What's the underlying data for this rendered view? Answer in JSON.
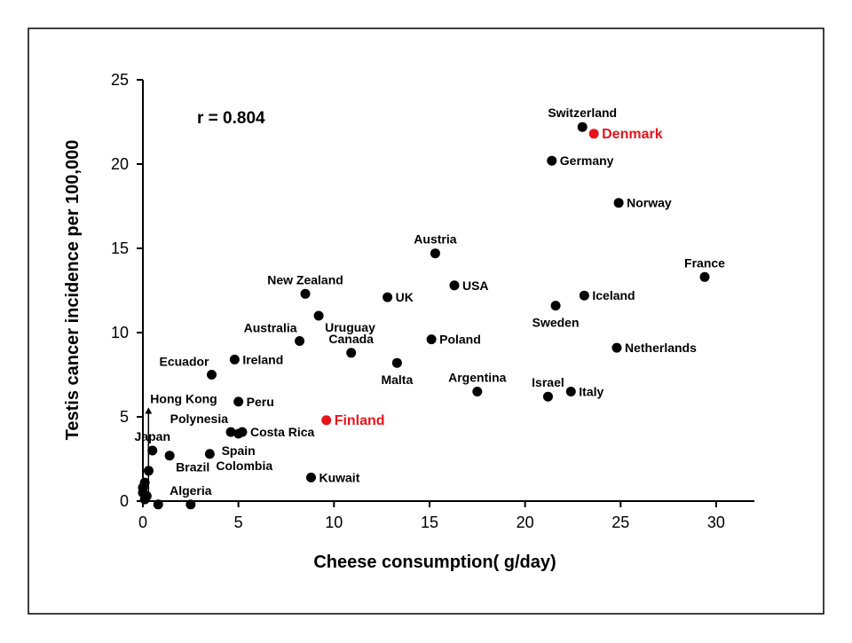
{
  "chart_data": {
    "type": "scatter",
    "title": "",
    "xlabel": "Cheese consumption( g/day)",
    "ylabel": "Testis cancer incidence per 100,000",
    "annotation": "r = 0.804",
    "xlim": [
      0,
      32
    ],
    "ylim": [
      0,
      25
    ],
    "x_ticks": [
      0,
      5,
      10,
      15,
      20,
      25,
      30
    ],
    "y_ticks": [
      0,
      5,
      10,
      15,
      20,
      25
    ],
    "grid": false,
    "legend": "none",
    "colors": {
      "default": "#000000",
      "highlight": "#e8141c"
    },
    "points": [
      {
        "name": "Switzerland",
        "x": 23.0,
        "y": 22.2,
        "label_pos": "above"
      },
      {
        "name": "Denmark",
        "x": 23.6,
        "y": 21.8,
        "label_pos": "right",
        "highlight": true
      },
      {
        "name": "Germany",
        "x": 21.4,
        "y": 20.2,
        "label_pos": "right"
      },
      {
        "name": "Norway",
        "x": 24.9,
        "y": 17.7,
        "label_pos": "right"
      },
      {
        "name": "Austria",
        "x": 15.3,
        "y": 14.7,
        "label_pos": "above"
      },
      {
        "name": "France",
        "x": 29.4,
        "y": 13.3,
        "label_pos": "above"
      },
      {
        "name": "USA",
        "x": 16.3,
        "y": 12.8,
        "label_pos": "right"
      },
      {
        "name": "New Zealand",
        "x": 8.5,
        "y": 12.3,
        "label_pos": "above"
      },
      {
        "name": "UK",
        "x": 12.8,
        "y": 12.1,
        "label_pos": "right"
      },
      {
        "name": "Iceland",
        "x": 23.1,
        "y": 12.2,
        "label_pos": "right"
      },
      {
        "name": "Sweden",
        "x": 21.6,
        "y": 11.6,
        "label_pos": "below"
      },
      {
        "name": "Uruguay",
        "x": 9.2,
        "y": 11.0,
        "label_pos": "right-below"
      },
      {
        "name": "Australia",
        "x": 8.2,
        "y": 9.5,
        "label_pos": "above-left"
      },
      {
        "name": "Poland",
        "x": 15.1,
        "y": 9.6,
        "label_pos": "right"
      },
      {
        "name": "Canada",
        "x": 10.9,
        "y": 8.8,
        "label_pos": "above"
      },
      {
        "name": "Netherlands",
        "x": 24.8,
        "y": 9.1,
        "label_pos": "right"
      },
      {
        "name": "Ireland",
        "x": 4.8,
        "y": 8.4,
        "label_pos": "right"
      },
      {
        "name": "Malta",
        "x": 13.3,
        "y": 8.2,
        "label_pos": "below"
      },
      {
        "name": "Ecuador",
        "x": 3.6,
        "y": 7.5,
        "label_pos": "above-left"
      },
      {
        "name": "Argentina",
        "x": 17.5,
        "y": 6.5,
        "label_pos": "above"
      },
      {
        "name": "Israel",
        "x": 21.2,
        "y": 6.2,
        "label_pos": "above"
      },
      {
        "name": "Italy",
        "x": 22.4,
        "y": 6.5,
        "label_pos": "right"
      },
      {
        "name": "Peru",
        "x": 5.0,
        "y": 5.9,
        "label_pos": "right"
      },
      {
        "name": "Finland",
        "x": 9.6,
        "y": 4.8,
        "label_pos": "right",
        "highlight": true
      },
      {
        "name": "Polynesia",
        "x": 4.6,
        "y": 4.1,
        "label_pos": "above-left"
      },
      {
        "name": "Costa Rica",
        "x": 5.2,
        "y": 4.1,
        "label_pos": "right"
      },
      {
        "name": "Spain",
        "x": 5.0,
        "y": 4.0,
        "label_pos": "below"
      },
      {
        "name": "Japan",
        "x": 0.5,
        "y": 3.0,
        "label_pos": "above"
      },
      {
        "name": "Brazil",
        "x": 1.4,
        "y": 2.7,
        "label_pos": "right-below"
      },
      {
        "name": "Colombia",
        "x": 3.5,
        "y": 2.8,
        "label_pos": "right-below"
      },
      {
        "name": "Kuwait",
        "x": 8.8,
        "y": 1.4,
        "label_pos": "right"
      },
      {
        "name": "Algeria",
        "x": 2.5,
        "y": -0.2,
        "label_pos": "above"
      },
      {
        "name": "Hong Kong",
        "x": 0.2,
        "y": 5.5,
        "label_pos": "above",
        "marker": "arrow"
      },
      {
        "name": "",
        "x": 0.3,
        "y": 1.8
      },
      {
        "name": "",
        "x": 0.1,
        "y": 1.1
      },
      {
        "name": "",
        "x": 0.0,
        "y": 0.8
      },
      {
        "name": "",
        "x": 0.0,
        "y": 0.5
      },
      {
        "name": "",
        "x": 0.2,
        "y": 0.3
      },
      {
        "name": "",
        "x": 0.1,
        "y": 0.1
      },
      {
        "name": "",
        "x": 0.8,
        "y": -0.2
      }
    ]
  }
}
